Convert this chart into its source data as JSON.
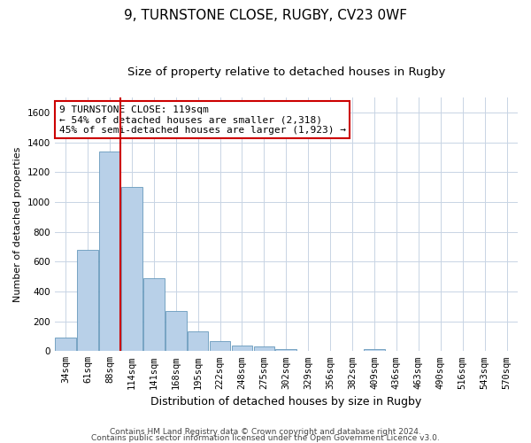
{
  "title1": "9, TURNSTONE CLOSE, RUGBY, CV23 0WF",
  "title2": "Size of property relative to detached houses in Rugby",
  "xlabel": "Distribution of detached houses by size in Rugby",
  "ylabel": "Number of detached properties",
  "categories": [
    "34sqm",
    "61sqm",
    "88sqm",
    "114sqm",
    "141sqm",
    "168sqm",
    "195sqm",
    "222sqm",
    "248sqm",
    "275sqm",
    "302sqm",
    "329sqm",
    "356sqm",
    "382sqm",
    "409sqm",
    "436sqm",
    "463sqm",
    "490sqm",
    "516sqm",
    "543sqm",
    "570sqm"
  ],
  "values": [
    90,
    680,
    1340,
    1100,
    490,
    270,
    135,
    65,
    35,
    30,
    15,
    0,
    0,
    0,
    15,
    0,
    0,
    0,
    0,
    0,
    0
  ],
  "bar_color": "#b8d0e8",
  "bar_edge_color": "#6699bb",
  "red_line_x": 3.0,
  "ylim": [
    0,
    1700
  ],
  "yticks": [
    0,
    200,
    400,
    600,
    800,
    1000,
    1200,
    1400,
    1600
  ],
  "annotation_line1": "9 TURNSTONE CLOSE: 119sqm",
  "annotation_line2": "← 54% of detached houses are smaller (2,318)",
  "annotation_line3": "45% of semi-detached houses are larger (1,923) →",
  "annotation_box_color": "#ffffff",
  "annotation_box_edge": "#cc0000",
  "footer_line1": "Contains HM Land Registry data © Crown copyright and database right 2024.",
  "footer_line2": "Contains public sector information licensed under the Open Government Licence v3.0.",
  "background_color": "#ffffff",
  "grid_color": "#c8d4e4",
  "title1_fontsize": 11,
  "title2_fontsize": 9.5,
  "xlabel_fontsize": 9,
  "ylabel_fontsize": 8,
  "tick_fontsize": 7.5,
  "footer_fontsize": 6.5,
  "annotation_fontsize": 8
}
